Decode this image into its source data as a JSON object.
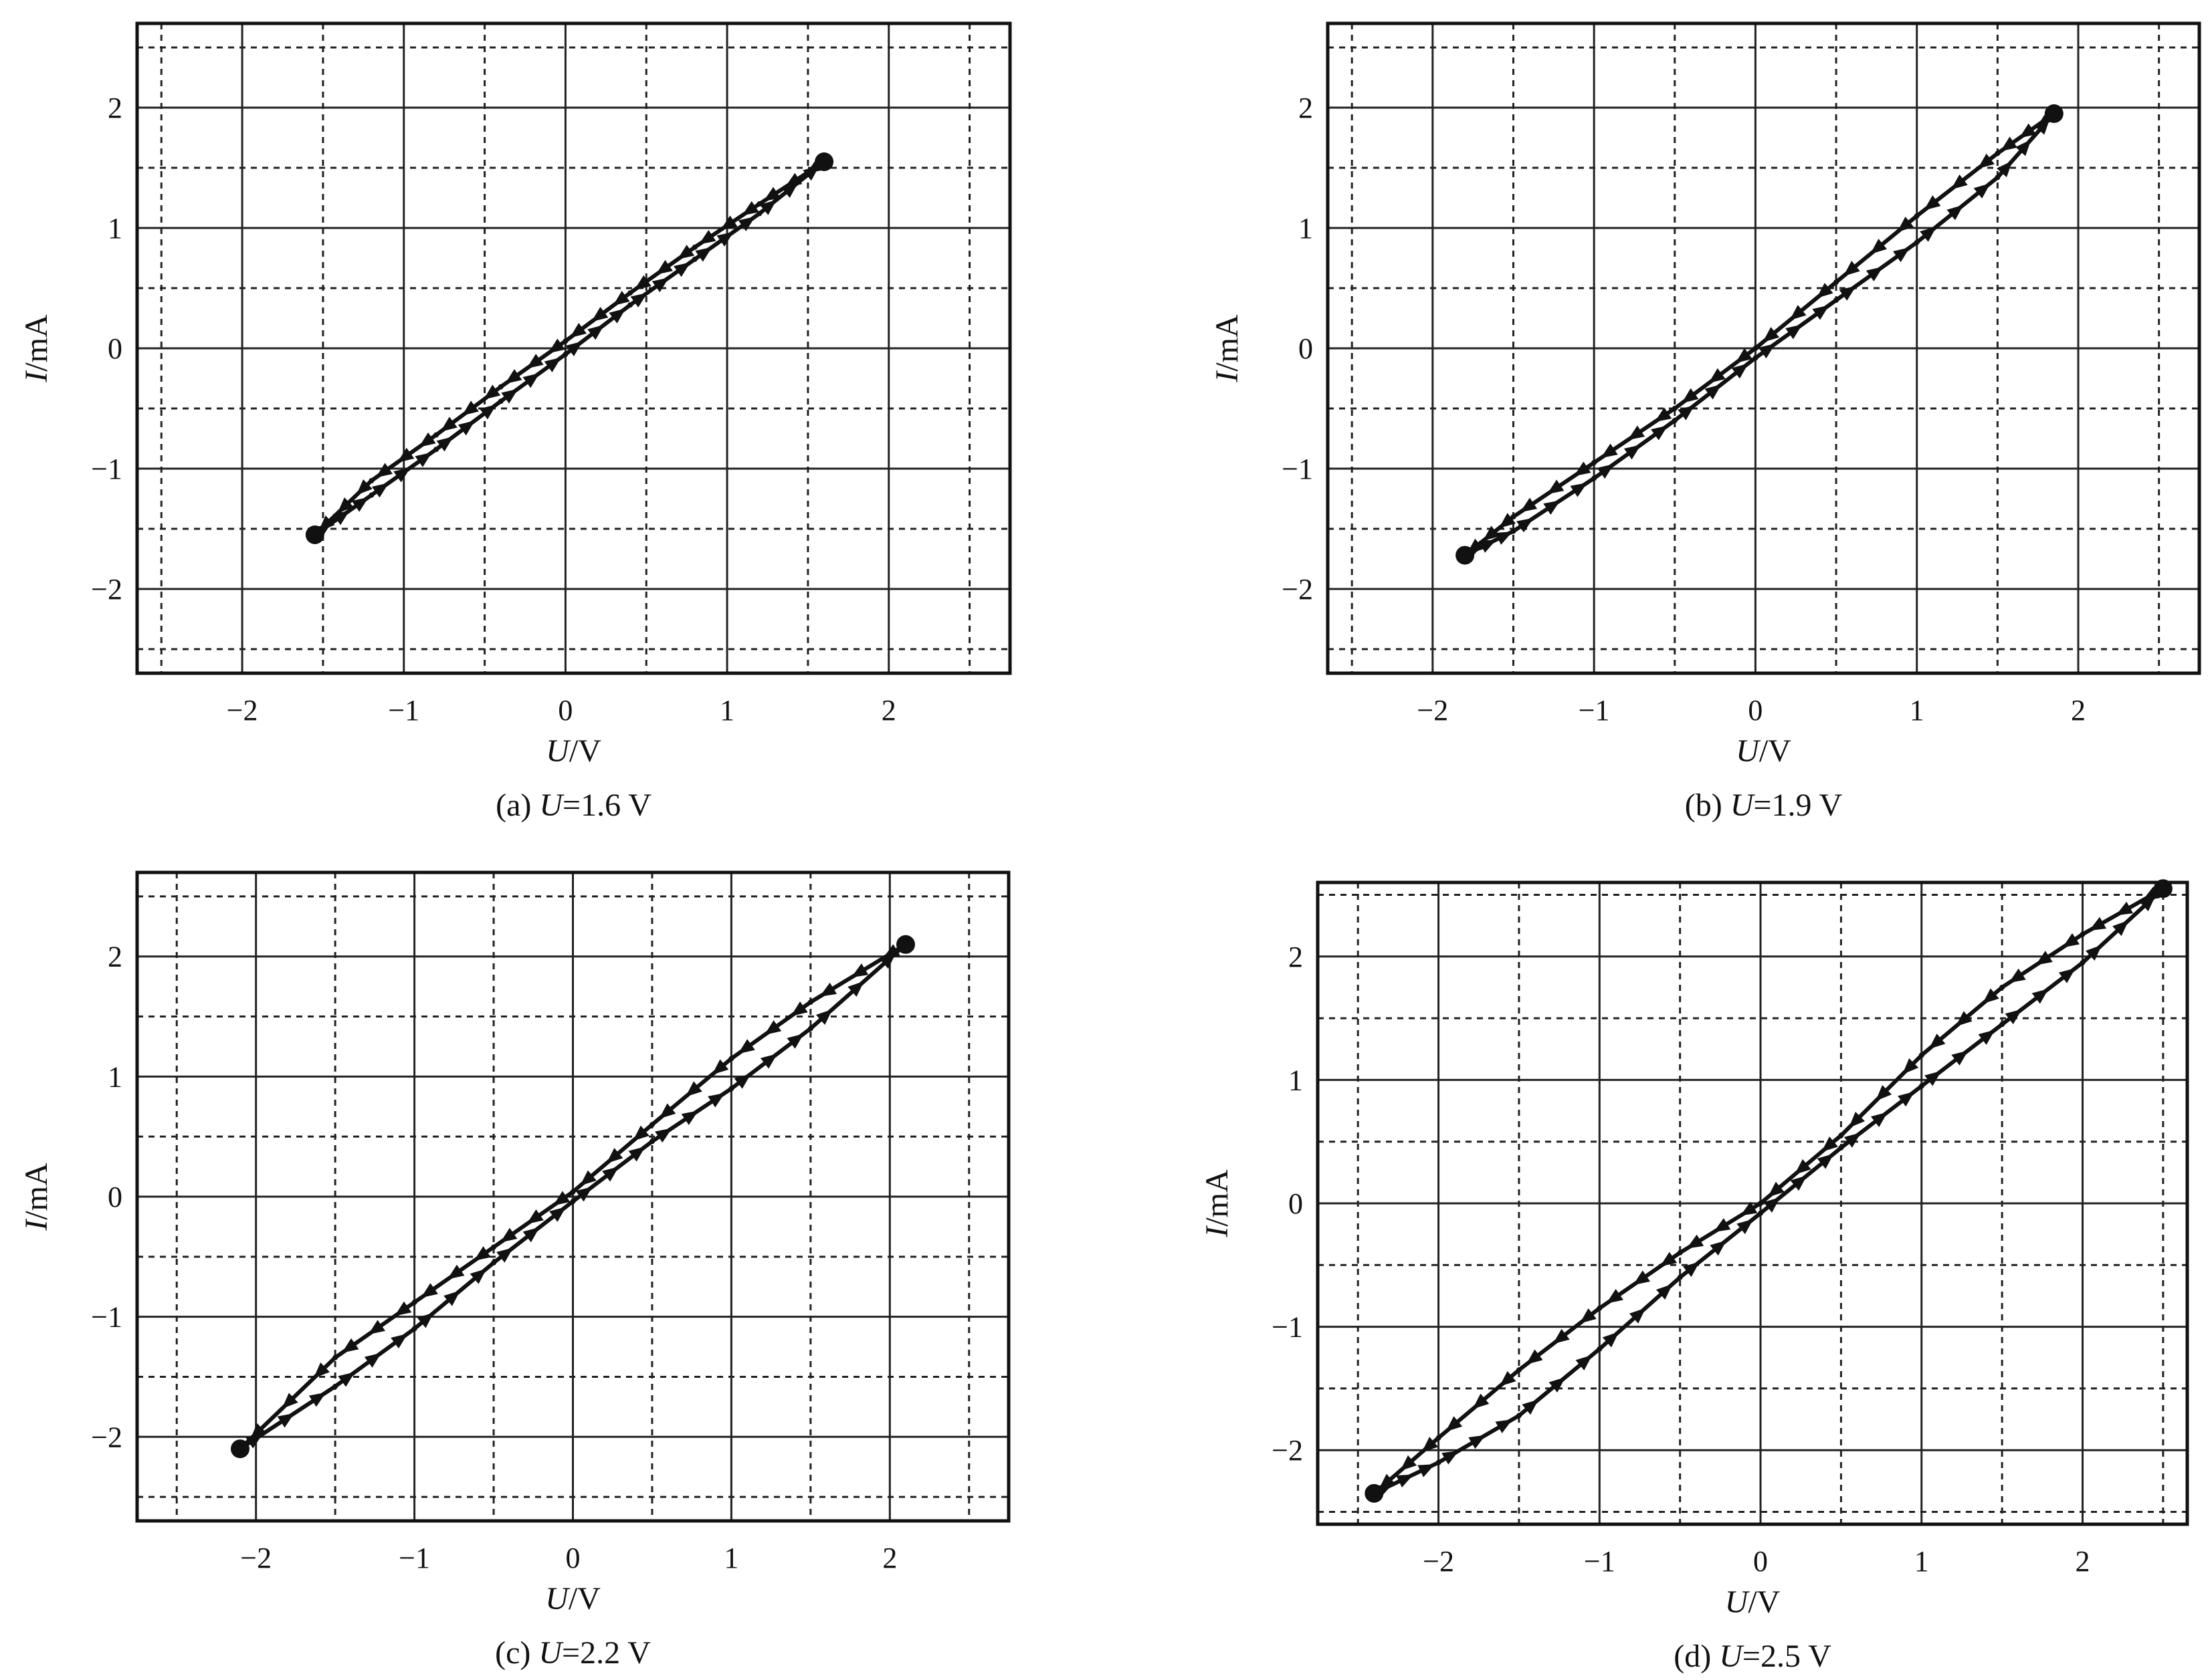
{
  "figure": {
    "common": {
      "xlabel_var": "U",
      "xlabel_unit": "/V",
      "ylabel_var": "I",
      "ylabel_unit": "/mA",
      "cap_unit": " V",
      "xticks": [
        -2,
        -1,
        0,
        1,
        2
      ],
      "yticks": [
        -2,
        -1,
        0,
        1,
        2
      ],
      "xtick_labels": [
        "−2",
        "−1",
        "0",
        "1",
        "2"
      ],
      "ytick_labels": [
        "−2",
        "−1",
        "0",
        "1",
        "2"
      ]
    }
  },
  "chart_data": [
    {
      "type": "line",
      "panel": "a",
      "caption_prefix": "(a) ",
      "caption_var": "U",
      "caption_value": "=1.6",
      "xlabel": "U/V",
      "ylabel": "I/mA",
      "xlim": [
        -2.65,
        2.75
      ],
      "ylim": [
        -2.7,
        2.7
      ],
      "solid_grid": [
        -2,
        -1,
        0,
        1,
        2
      ],
      "dashed_grid": [
        -2.5,
        -1.5,
        -0.5,
        0.5,
        1.5,
        2.5
      ],
      "grid": true,
      "series": [
        {
          "marker": "triangle",
          "x": [
            1.6,
            1.2,
            0.8,
            0.4,
            0.0,
            -0.4,
            -0.8,
            -1.2,
            -1.55
          ],
          "y": [
            1.55,
            1.2,
            0.84,
            0.46,
            0.06,
            -0.32,
            -0.72,
            -1.1,
            -1.55
          ]
        },
        {
          "marker": "triangle",
          "x": [
            -1.55,
            -1.2,
            -0.8,
            -0.4,
            0.0,
            0.4,
            0.8,
            1.2,
            1.6
          ],
          "y": [
            -1.55,
            -1.22,
            -0.84,
            -0.44,
            -0.05,
            0.36,
            0.74,
            1.12,
            1.55
          ]
        }
      ]
    },
    {
      "type": "line",
      "panel": "b",
      "caption_prefix": "(b) ",
      "caption_var": "U",
      "caption_value": "=1.9",
      "xlabel": "U/V",
      "ylabel": "I/mA",
      "xlim": [
        -2.65,
        2.75
      ],
      "ylim": [
        -2.7,
        2.7
      ],
      "solid_grid": [
        -2,
        -1,
        0,
        1,
        2
      ],
      "dashed_grid": [
        -2.5,
        -1.5,
        -0.5,
        0.5,
        1.5,
        2.5
      ],
      "grid": true,
      "series": [
        {
          "marker": "triangle",
          "x": [
            1.85,
            1.5,
            1.0,
            0.5,
            0.0,
            -0.5,
            -1.0,
            -1.5,
            -1.8
          ],
          "y": [
            1.95,
            1.62,
            1.1,
            0.55,
            0.0,
            -0.5,
            -0.95,
            -1.4,
            -1.72
          ]
        },
        {
          "marker": "triangle",
          "x": [
            -1.8,
            -1.5,
            -1.0,
            -0.5,
            0.0,
            0.5,
            1.0,
            1.5,
            1.85
          ],
          "y": [
            -1.72,
            -1.52,
            -1.08,
            -0.6,
            -0.08,
            0.4,
            0.88,
            1.42,
            1.95
          ]
        }
      ]
    },
    {
      "type": "line",
      "panel": "c",
      "caption_prefix": "(c) ",
      "caption_var": "U",
      "caption_value": "=2.2",
      "xlabel": "U/V",
      "ylabel": "I/mA",
      "xlim": [
        -2.75,
        2.75
      ],
      "ylim": [
        -2.7,
        2.7
      ],
      "solid_grid": [
        -2,
        -1,
        0,
        1,
        2
      ],
      "dashed_grid": [
        -2.5,
        -1.5,
        -0.5,
        0.5,
        1.5,
        2.5
      ],
      "grid": true,
      "series": [
        {
          "marker": "triangle",
          "x": [
            2.1,
            1.5,
            1.0,
            0.5,
            0.0,
            -0.5,
            -1.0,
            -1.5,
            -2.1
          ],
          "y": [
            2.1,
            1.62,
            1.15,
            0.6,
            0.04,
            -0.42,
            -0.88,
            -1.34,
            -2.1
          ]
        },
        {
          "marker": "triangle",
          "x": [
            -2.1,
            -1.5,
            -1.0,
            -0.5,
            0.0,
            0.5,
            1.0,
            1.5,
            2.1
          ],
          "y": [
            -2.1,
            -1.58,
            -1.1,
            -0.55,
            -0.04,
            0.46,
            0.9,
            1.4,
            2.1
          ]
        }
      ]
    },
    {
      "type": "line",
      "panel": "d",
      "caption_prefix": "(d) ",
      "caption_var": "U",
      "caption_value": "=2.5",
      "xlabel": "U/V",
      "ylabel": "I/mA",
      "xlim": [
        -2.75,
        2.65
      ],
      "ylim": [
        -2.6,
        2.6
      ],
      "solid_grid": [
        -2,
        -1,
        0,
        1,
        2
      ],
      "dashed_grid": [
        -2.5,
        -1.5,
        -0.5,
        0.5,
        1.5,
        2.5
      ],
      "grid": true,
      "series": [
        {
          "marker": "triangle",
          "x": [
            2.5,
            2.0,
            1.5,
            1.0,
            0.5,
            0.0,
            -0.5,
            -1.0,
            -1.5,
            -2.0,
            -2.4
          ],
          "y": [
            2.55,
            2.18,
            1.75,
            1.2,
            0.55,
            0.0,
            -0.4,
            -0.85,
            -1.35,
            -1.9,
            -2.35
          ]
        },
        {
          "marker": "triangle",
          "x": [
            -2.4,
            -2.0,
            -1.5,
            -1.0,
            -0.5,
            0.0,
            0.5,
            1.0,
            1.5,
            2.0,
            2.5
          ],
          "y": [
            -2.35,
            -2.1,
            -1.72,
            -1.18,
            -0.6,
            -0.08,
            0.45,
            0.95,
            1.45,
            1.95,
            2.55
          ]
        }
      ]
    }
  ]
}
